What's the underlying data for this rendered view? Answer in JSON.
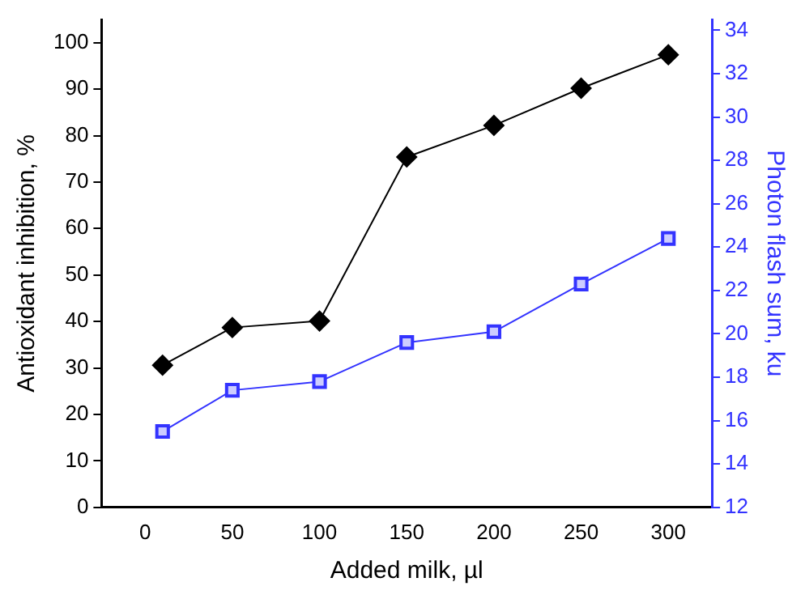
{
  "chart_data": {
    "type": "line",
    "xlabel": "Added milk, µl",
    "ylabel": "Antioxidant inhibition, %",
    "y2label": "Photon flash sum, ku",
    "x": [
      10,
      50,
      100,
      150,
      200,
      250,
      300
    ],
    "series": [
      {
        "color": "#000000",
        "marker": "diamond",
        "values": [
          30.6,
          38.7,
          40.1,
          75.4,
          82.2,
          90.2,
          97.4
        ]
      },
      {
        "color": "#3333ff",
        "marker": "square",
        "axis": "y2",
        "values": [
          15.5,
          17.4,
          17.8,
          19.6,
          20.1,
          22.3,
          24.4
        ]
      }
    ],
    "xlim": [
      -25,
      325
    ],
    "xticks": [
      0,
      50,
      100,
      150,
      200,
      250,
      300
    ],
    "ylim": [
      0,
      105
    ],
    "yticks": [
      0,
      10,
      20,
      30,
      40,
      50,
      60,
      70,
      80,
      90,
      100
    ],
    "y2lim": [
      12,
      34.5
    ],
    "y2ticks": [
      12,
      14,
      16,
      18,
      20,
      22,
      24,
      26,
      28,
      30,
      32,
      34
    ],
    "grid": false,
    "legend": false
  }
}
